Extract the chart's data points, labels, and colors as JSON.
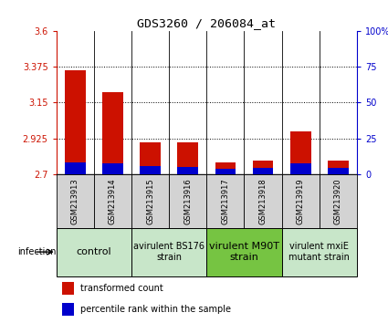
{
  "title": "GDS3260 / 206084_at",
  "samples": [
    "GSM213913",
    "GSM213914",
    "GSM213915",
    "GSM213916",
    "GSM213917",
    "GSM213918",
    "GSM213919",
    "GSM213920"
  ],
  "transformed_counts": [
    3.355,
    3.215,
    2.9,
    2.9,
    2.775,
    2.785,
    2.97,
    2.785
  ],
  "percentile_ranks": [
    14,
    13,
    10,
    9,
    7,
    8,
    13,
    8
  ],
  "ylim": [
    2.7,
    3.6
  ],
  "yticks": [
    2.7,
    2.925,
    3.15,
    3.375,
    3.6
  ],
  "ytick_labels": [
    "2.7",
    "2.925",
    "3.15",
    "3.375",
    "3.6"
  ],
  "y2lim": [
    0,
    100
  ],
  "y2ticks": [
    0,
    25,
    50,
    75,
    100
  ],
  "y2tick_labels": [
    "0",
    "25",
    "50",
    "75",
    "100%"
  ],
  "groups": [
    {
      "label": "control",
      "start": 0,
      "end": 1,
      "color": "#c8e6c9",
      "fontsize": 8
    },
    {
      "label": "avirulent BS176\nstrain",
      "start": 2,
      "end": 3,
      "color": "#c8e6c9",
      "fontsize": 7
    },
    {
      "label": "virulent M90T\nstrain",
      "start": 4,
      "end": 5,
      "color": "#76c442",
      "fontsize": 8
    },
    {
      "label": "virulent mxiE\nmutant strain",
      "start": 6,
      "end": 7,
      "color": "#c8e6c9",
      "fontsize": 7
    }
  ],
  "bar_color_red": "#cc1100",
  "bar_color_blue": "#0000cc",
  "bar_width": 0.55,
  "xlabel_infection": "infection",
  "legend_red": "transformed count",
  "legend_blue": "percentile rank within the sample",
  "grid_yticks": [
    2.925,
    3.15,
    3.375
  ],
  "pct_scale_factor": 0.06
}
